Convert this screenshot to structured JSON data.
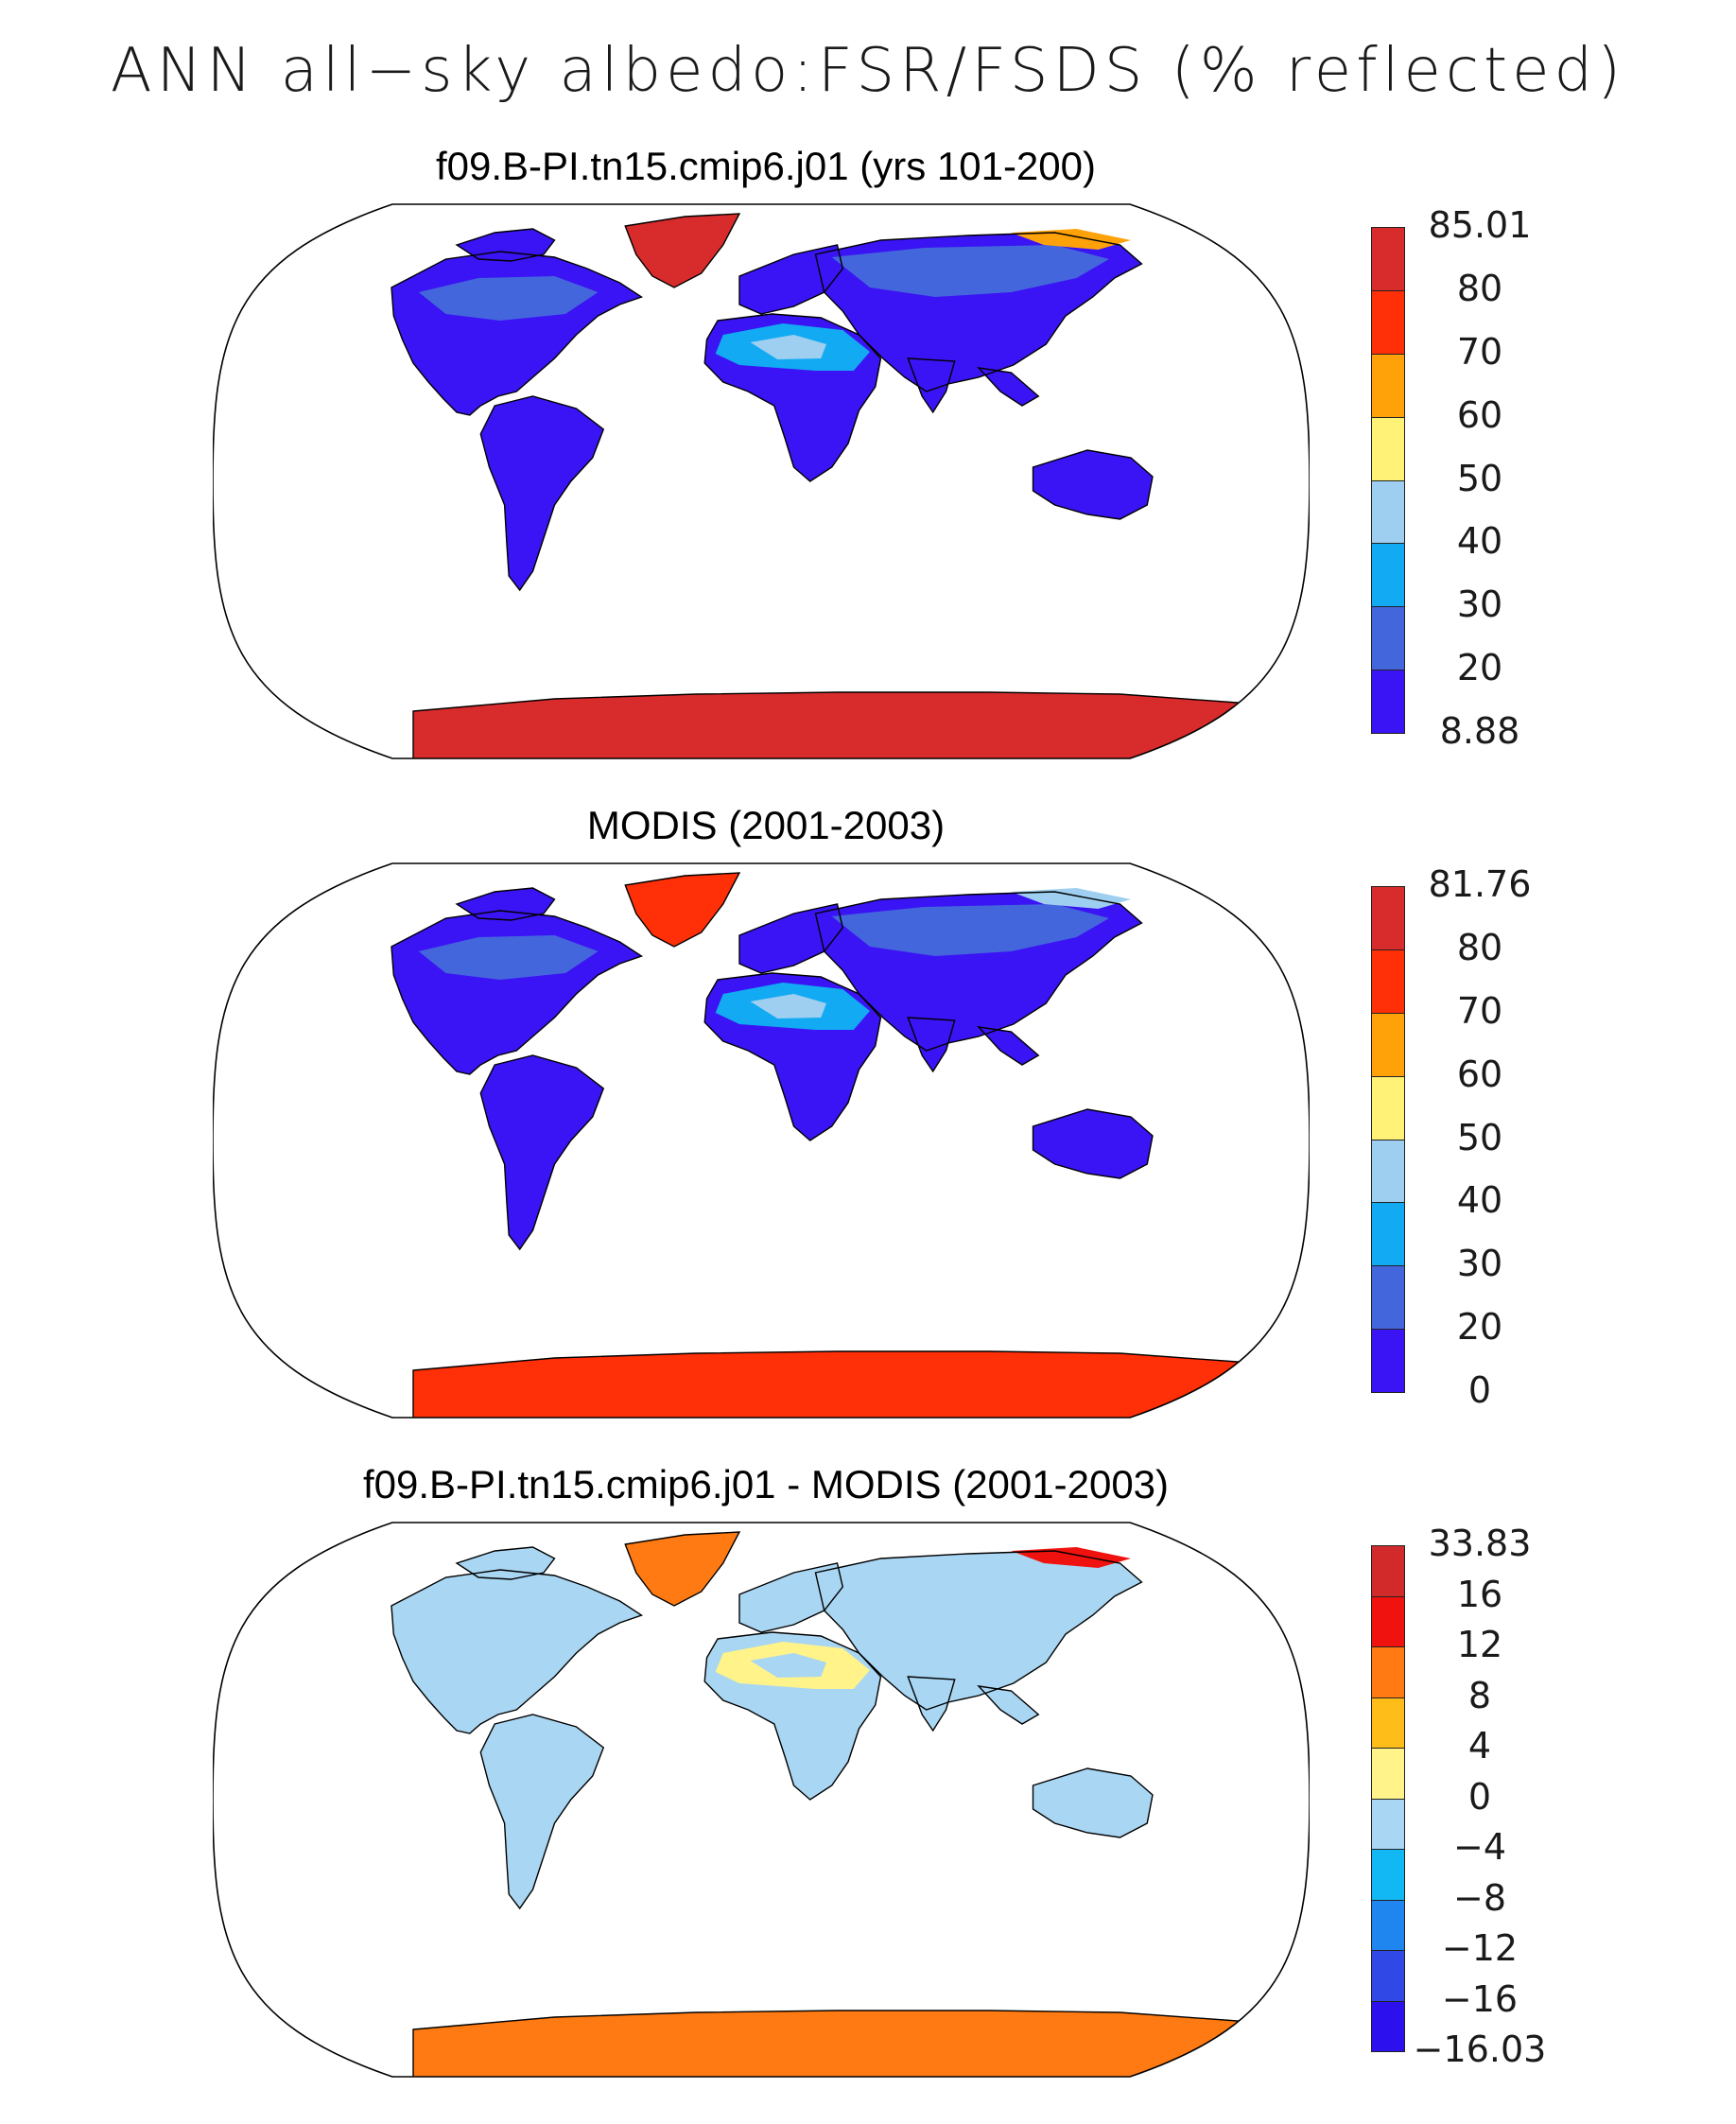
{
  "title": "ANN all−sky albedo:FSR/FSDS (% reflected)",
  "panels": [
    {
      "title": "f09.B-PI.tn15.cmip6.j01 (yrs 101-200)",
      "colorbar": {
        "colors": [
          "#3a14f4",
          "#4466dd",
          "#12aaf2",
          "#9ecff0",
          "#fff277",
          "#ffa20a",
          "#ff2f07",
          "#d82b2b"
        ],
        "labels": [
          "8.88",
          "20",
          "30",
          "40",
          "50",
          "60",
          "70",
          "80",
          "85.01"
        ]
      },
      "fills": {
        "land": "#3a14f4",
        "boreal": "#4466dd",
        "desert": "#12aaf2",
        "desert_core": "#9ecff0",
        "greenland": "#d82b2b",
        "antarctica": "#d82b2b",
        "arctic_edge": "#ffa20a"
      }
    },
    {
      "title": "MODIS (2001-2003)",
      "colorbar": {
        "colors": [
          "#3a14f4",
          "#4466dd",
          "#12aaf2",
          "#9ecff0",
          "#fff277",
          "#ffa20a",
          "#ff2f07",
          "#d82b2b"
        ],
        "labels": [
          "0",
          "20",
          "30",
          "40",
          "50",
          "60",
          "70",
          "80",
          "81.76"
        ]
      },
      "fills": {
        "land": "#3a14f4",
        "boreal": "#4466dd",
        "desert": "#12aaf2",
        "desert_core": "#9ecff0",
        "greenland": "#ff2f07",
        "antarctica": "#ff2f07",
        "arctic_edge": "#9ecff0"
      }
    },
    {
      "title": "f09.B-PI.tn15.cmip6.j01 - MODIS (2001-2003)",
      "colorbar": {
        "colors": [
          "#2c10ee",
          "#2f48e6",
          "#1f86ef",
          "#12b8f4",
          "#a9d6f2",
          "#fff38a",
          "#ffbd1a",
          "#ff7a12",
          "#f0120e",
          "#d22a2a"
        ],
        "labels": [
          "−16.03",
          "−16",
          "−12",
          "−8",
          "−4",
          "0",
          "4",
          "8",
          "12",
          "16",
          "33.83"
        ]
      },
      "fills": {
        "land": "#a9d6f2",
        "boreal": "#a9d6f2",
        "desert": "#fff38a",
        "desert_core": "#a9d6f2",
        "greenland": "#ff7a12",
        "antarctica": "#ff7a12",
        "arctic_edge": "#f0120e"
      }
    }
  ]
}
